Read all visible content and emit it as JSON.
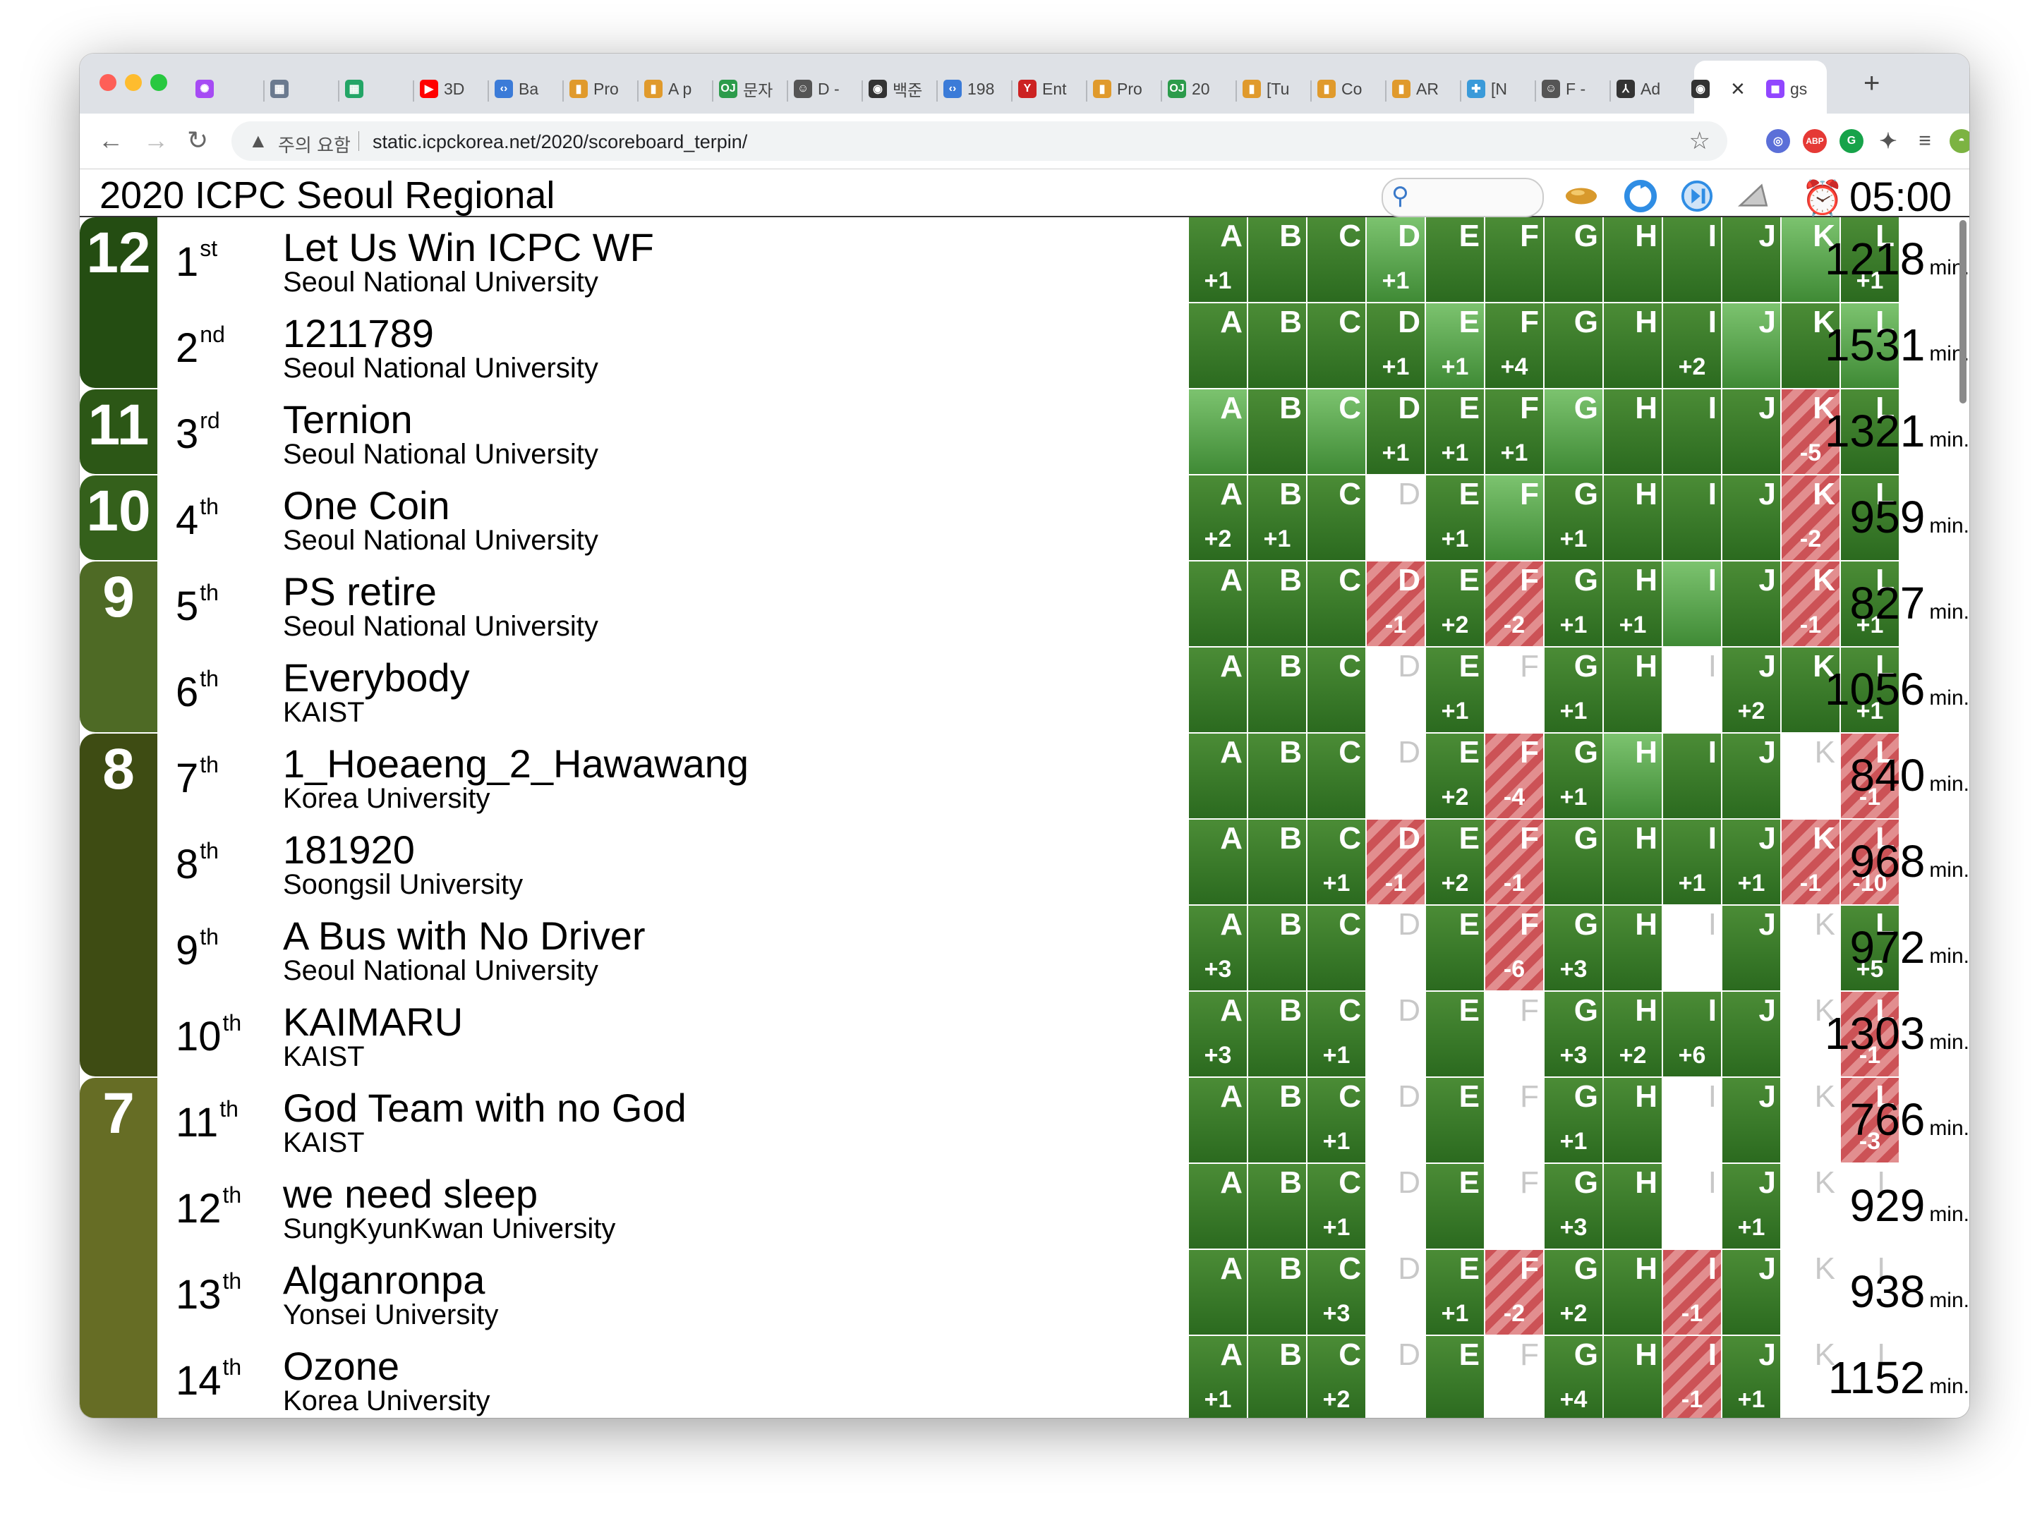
{
  "browser": {
    "tabs": [
      {
        "icon": "messenger-icon",
        "label": "",
        "color": "#a64bf4"
      },
      {
        "icon": "calendar-icon",
        "label": "",
        "color": "#6b7a8f"
      },
      {
        "icon": "sheets-icon",
        "label": "",
        "color": "#23a566"
      },
      {
        "icon": "youtube-icon",
        "label": "3D",
        "color": "#ff0000"
      },
      {
        "icon": "code-icon",
        "label": "Ba",
        "color": "#3b7bd8"
      },
      {
        "icon": "chart-icon",
        "label": "Pro",
        "color": "#e09a2c"
      },
      {
        "icon": "chart-icon",
        "label": "A p",
        "color": "#e09a2c"
      },
      {
        "icon": "oj-icon",
        "label": "문자",
        "color": "#2c9b4b"
      },
      {
        "icon": "robot-icon",
        "label": "D -",
        "color": "#555555"
      },
      {
        "icon": "globe-icon",
        "label": "백준",
        "color": "#333333"
      },
      {
        "icon": "code-icon",
        "label": "198",
        "color": "#3b7bd8"
      },
      {
        "icon": "yandex-icon",
        "label": "Ent",
        "color": "#cc2222"
      },
      {
        "icon": "chart-icon",
        "label": "Pro",
        "color": "#e09a2c"
      },
      {
        "icon": "oj-icon",
        "label": "20",
        "color": "#2c9b4b"
      },
      {
        "icon": "chart-icon",
        "label": "[Tu",
        "color": "#e09a2c"
      },
      {
        "icon": "chart-icon",
        "label": "Co",
        "color": "#e09a2c"
      },
      {
        "icon": "chart-icon",
        "label": "AR",
        "color": "#e09a2c"
      },
      {
        "icon": "puzzle-icon",
        "label": "[N",
        "color": "#3a9ad9"
      },
      {
        "icon": "robot-icon",
        "label": "F -",
        "color": "#555555"
      },
      {
        "icon": "triangle-icon",
        "label": "Ad",
        "color": "#333333"
      },
      {
        "icon": "globe-icon",
        "label": "",
        "color": "#333333"
      },
      {
        "icon": "twitch-icon",
        "label": "gs",
        "color": "#9146ff"
      }
    ],
    "close_glyph": "×",
    "new_tab_glyph": "+",
    "security_label": "주의 요함",
    "url": "static.icpckorea.net/2020/scoreboard_terpin/"
  },
  "page": {
    "title": "2020 ICPC Seoul Regional",
    "clock": "05:00",
    "min_unit": "min."
  },
  "problems": [
    "A",
    "B",
    "C",
    "D",
    "E",
    "F",
    "G",
    "H",
    "I",
    "J",
    "K",
    "L"
  ],
  "solve_groups": [
    {
      "count": "12",
      "rows": 2,
      "color": "#244d12"
    },
    {
      "count": "11",
      "rows": 1,
      "color": "#2c5716"
    },
    {
      "count": "10",
      "rows": 1,
      "color": "#34601b"
    },
    {
      "count": "9",
      "rows": 2,
      "color": "#4e6a25"
    },
    {
      "count": "8",
      "rows": 4,
      "color": "#3e4c13"
    },
    {
      "count": "7",
      "rows": 4,
      "color": "#666d25"
    }
  ],
  "teams": [
    {
      "rank": "1",
      "suffix": "st",
      "name": "Let Us Win ICPC WF",
      "univ": "Seoul National University",
      "penalty": "1218",
      "cells": [
        "s|+1",
        "s|",
        "s|",
        "f|+1",
        "s|",
        "s|",
        "s|",
        "s|",
        "s|",
        "s|",
        "f|",
        "s|+1"
      ]
    },
    {
      "rank": "2",
      "suffix": "nd",
      "name": "1211789",
      "univ": "Seoul National University",
      "penalty": "1531",
      "cells": [
        "s|",
        "s|",
        "s|",
        "s|+1",
        "f|+1",
        "s|+4",
        "s|",
        "s|",
        "s|+2",
        "f|",
        "s|",
        "f|"
      ]
    },
    {
      "rank": "3",
      "suffix": "rd",
      "name": "Ternion",
      "univ": "Seoul National University",
      "penalty": "1321",
      "cells": [
        "f|",
        "s|",
        "f|",
        "s|+1",
        "s|+1",
        "s|+1",
        "f|",
        "s|",
        "s|",
        "s|",
        "x|-5",
        "s|"
      ]
    },
    {
      "rank": "4",
      "suffix": "th",
      "name": "One Coin",
      "univ": "Seoul National University",
      "penalty": "959",
      "cells": [
        "s|+2",
        "s|+1",
        "s|",
        "n|",
        "s|+1",
        "f|",
        "s|+1",
        "s|",
        "s|",
        "s|",
        "x|-2",
        "s|"
      ]
    },
    {
      "rank": "5",
      "suffix": "th",
      "name": "PS retire",
      "univ": "Seoul National University",
      "penalty": "827",
      "cells": [
        "s|",
        "s|",
        "s|",
        "x|-1",
        "s|+2",
        "x|-2",
        "s|+1",
        "s|+1",
        "f|",
        "s|",
        "x|-1",
        "s|+1"
      ]
    },
    {
      "rank": "6",
      "suffix": "th",
      "name": "Everybody",
      "univ": "KAIST",
      "penalty": "1056",
      "cells": [
        "s|",
        "s|",
        "s|",
        "n|",
        "s|+1",
        "n|",
        "s|+1",
        "s|",
        "n|",
        "s|+2",
        "s|",
        "s|+1"
      ]
    },
    {
      "rank": "7",
      "suffix": "th",
      "name": "1_Hoeaeng_2_Hawawang",
      "univ": "Korea University",
      "penalty": "840",
      "cells": [
        "s|",
        "s|",
        "s|",
        "n|",
        "s|+2",
        "x|-4",
        "s|+1",
        "f|",
        "s|",
        "s|",
        "n|",
        "x|-1"
      ]
    },
    {
      "rank": "8",
      "suffix": "th",
      "name": "181920",
      "univ": "Soongsil University",
      "penalty": "968",
      "cells": [
        "s|",
        "s|",
        "s|+1",
        "x|-1",
        "s|+2",
        "x|-1",
        "s|",
        "s|",
        "s|+1",
        "s|+1",
        "x|-1",
        "x|-10"
      ]
    },
    {
      "rank": "9",
      "suffix": "th",
      "name": "A Bus with No Driver",
      "univ": "Seoul National University",
      "penalty": "972",
      "cells": [
        "s|+3",
        "s|",
        "s|",
        "n|",
        "s|",
        "x|-6",
        "s|+3",
        "s|",
        "n|",
        "s|",
        "n|",
        "s|+5"
      ]
    },
    {
      "rank": "10",
      "suffix": "th",
      "name": "KAIMARU",
      "univ": "KAIST",
      "penalty": "1303",
      "cells": [
        "s|+3",
        "s|",
        "s|+1",
        "n|",
        "s|",
        "n|",
        "s|+3",
        "s|+2",
        "s|+6",
        "s|",
        "n|",
        "x|-1"
      ]
    },
    {
      "rank": "11",
      "suffix": "th",
      "name": "God Team with no God",
      "univ": "KAIST",
      "penalty": "766",
      "cells": [
        "s|",
        "s|",
        "s|+1",
        "n|",
        "s|",
        "n|",
        "s|+1",
        "s|",
        "n|",
        "s|",
        "n|",
        "x|-3"
      ]
    },
    {
      "rank": "12",
      "suffix": "th",
      "name": "we need sleep",
      "univ": "SungKyunKwan University",
      "penalty": "929",
      "cells": [
        "s|",
        "s|",
        "s|+1",
        "n|",
        "s|",
        "n|",
        "s|+3",
        "s|",
        "n|",
        "s|+1",
        "n|",
        "n|"
      ]
    },
    {
      "rank": "13",
      "suffix": "th",
      "name": "Alganronpa",
      "univ": "Yonsei University",
      "penalty": "938",
      "cells": [
        "s|",
        "s|",
        "s|+3",
        "n|",
        "s|+1",
        "x|-2",
        "s|+2",
        "s|",
        "x|-1",
        "s|",
        "n|",
        "n|"
      ]
    },
    {
      "rank": "14",
      "suffix": "th",
      "name": "Ozone",
      "univ": "Korea University",
      "penalty": "1152",
      "cells": [
        "s|+1",
        "s|",
        "s|+2",
        "n|",
        "s|",
        "n|",
        "s|+4",
        "s|",
        "x|-1",
        "s|+1",
        "n|",
        "n|"
      ]
    }
  ]
}
